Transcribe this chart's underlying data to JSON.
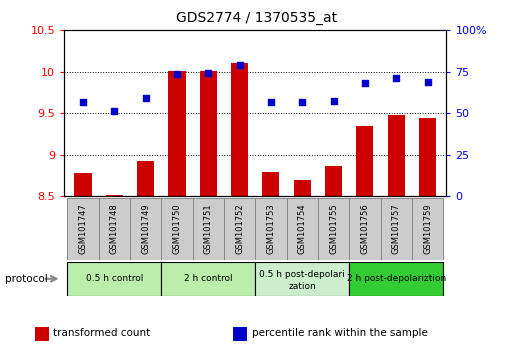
{
  "title": "GDS2774 / 1370535_at",
  "samples": [
    "GSM101747",
    "GSM101748",
    "GSM101749",
    "GSM101750",
    "GSM101751",
    "GSM101752",
    "GSM101753",
    "GSM101754",
    "GSM101755",
    "GSM101756",
    "GSM101757",
    "GSM101759"
  ],
  "bar_values": [
    8.78,
    8.52,
    8.93,
    10.01,
    10.01,
    10.1,
    8.8,
    8.7,
    8.87,
    9.35,
    9.48,
    9.44
  ],
  "dot_values": [
    9.63,
    9.53,
    9.68,
    9.97,
    9.98,
    10.08,
    9.64,
    9.63,
    9.65,
    9.86,
    9.92,
    9.88
  ],
  "bar_bottom": 8.5,
  "ylim_left": [
    8.5,
    10.5
  ],
  "ylim_right": [
    0,
    100
  ],
  "yticks_left": [
    8.5,
    9.0,
    9.5,
    10.0,
    10.5
  ],
  "ytick_labels_left": [
    "8.5",
    "9",
    "9.5",
    "10",
    "10.5"
  ],
  "yticks_right": [
    0,
    25,
    50,
    75,
    100
  ],
  "ytick_labels_right": [
    "0",
    "25",
    "50",
    "75",
    "100%"
  ],
  "bar_color": "#cc0000",
  "dot_color": "#0000cc",
  "bg_color": "#ffffff",
  "protocol_groups": [
    {
      "label": "0.5 h control",
      "start": 0,
      "end": 3,
      "color": "#bbeeaa"
    },
    {
      "label": "2 h control",
      "start": 3,
      "end": 6,
      "color": "#bbeeaa"
    },
    {
      "label": "0.5 h post-depolarization",
      "start": 6,
      "end": 9,
      "color": "#cceecc"
    },
    {
      "label": "2 h post-depolariztion",
      "start": 9,
      "end": 12,
      "color": "#33cc33"
    }
  ],
  "sample_box_color": "#cccccc",
  "sample_box_edge": "#888888",
  "grid_yticks": [
    9.0,
    9.5,
    10.0
  ],
  "legend_items": [
    {
      "label": "transformed count",
      "color": "#cc0000"
    },
    {
      "label": "percentile rank within the sample",
      "color": "#0000cc"
    }
  ]
}
